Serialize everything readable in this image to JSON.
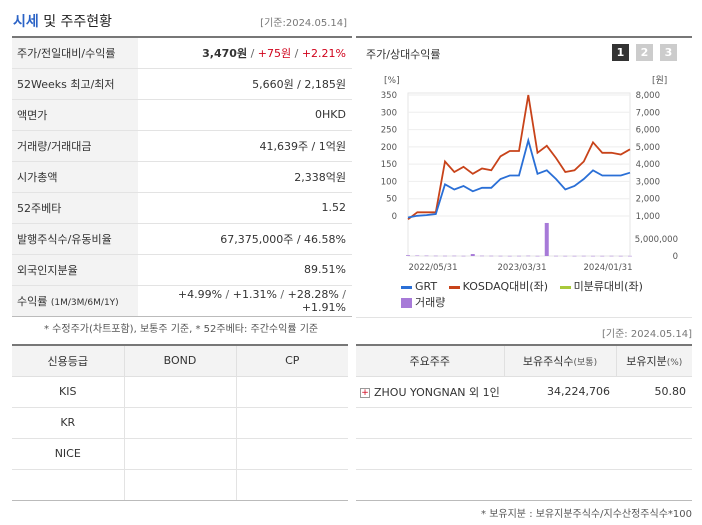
{
  "header": {
    "title_main": "시세",
    "title_rest": " 및 주주현황",
    "date": "[기준:2024.05.14]"
  },
  "quote": {
    "price_label": "주가/전일대비/수익률",
    "price": "3,470원",
    "change": "+75원",
    "change_pct": "+2.21%",
    "w52_label": "52Weeks 최고/최저",
    "w52_value": "5,660원 / 2,185원",
    "par_label": "액면가",
    "par_value": "0HKD",
    "volume_label": "거래량/거래대금",
    "volume_value": "41,639주 / 1억원",
    "mcap_label": "시가총액",
    "mcap_value": "2,338억원",
    "beta_label": "52주베타",
    "beta_value": "1.52",
    "shares_label": "발행주식수/유동비율",
    "shares_value": "67,375,000주 / 46.58%",
    "foreign_label": "외국인지분율",
    "foreign_value": "89.51%",
    "return_label": "수익률",
    "return_period": "(1M/3M/6M/1Y)",
    "return_1m": "+4.99%",
    "return_3m": "+1.31%",
    "return_6m": "+28.28%",
    "return_1y": "+1.91%"
  },
  "notes": {
    "note1": "* 수정주가(차트포함), 보통주 기준, * 52주베타: 주간수익률 기준",
    "date2": "[기준: 2024.05.14]",
    "note2": "* 보유지분 : 보유지분주식수/지수산정주식수*100"
  },
  "chart_panel": {
    "title": "주가/상대수익률",
    "pages": [
      "1",
      "2",
      "3"
    ]
  },
  "chart_data": {
    "type": "line",
    "left_unit": "[%]",
    "right_unit": "[원]",
    "left_ticks": [
      "350",
      "300",
      "250",
      "200",
      "150",
      "100",
      "50",
      "0"
    ],
    "right_ticks": [
      "8,000",
      "7,000",
      "6,000",
      "5,000",
      "4,000",
      "3,000",
      "2,000",
      "1,000"
    ],
    "volume_ticks": [
      "5,000,000",
      "0"
    ],
    "x_labels": [
      "2022/05/31",
      "2023/03/31",
      "2024/01/31"
    ],
    "ylim_left": [
      -10,
      350
    ],
    "ylim_volume": [
      0,
      7000000
    ],
    "series": [
      {
        "name": "GRT",
        "color": "#2a6fd6",
        "values": [
          0,
          5,
          7,
          10,
          95,
          80,
          90,
          75,
          85,
          85,
          110,
          120,
          120,
          220,
          125,
          135,
          110,
          80,
          90,
          110,
          135,
          120,
          120,
          120,
          128
        ]
      },
      {
        "name": "KOSDAQ대비(좌)",
        "color": "#c8431a",
        "values": [
          -5,
          15,
          15,
          15,
          160,
          130,
          145,
          125,
          140,
          135,
          175,
          190,
          190,
          350,
          185,
          205,
          170,
          130,
          135,
          160,
          215,
          185,
          185,
          180,
          195
        ]
      },
      {
        "name": "미분류대비(좌)",
        "color": "#a8c93b",
        "values": []
      },
      {
        "name": "거래량",
        "color": "#a77ad8",
        "values": [
          150000,
          100000,
          80000,
          60000,
          50000,
          60000,
          40000,
          400000,
          60000,
          50000,
          40000,
          30000,
          40000,
          60000,
          30000,
          6800000,
          40000,
          30000,
          30000,
          40000,
          30000,
          30000,
          40000,
          30000,
          30000
        ]
      }
    ]
  },
  "credit": {
    "headers": [
      "신용등급",
      "BOND",
      "CP"
    ],
    "rows": [
      [
        "KIS",
        "",
        ""
      ],
      [
        "KR",
        "",
        ""
      ],
      [
        "NICE",
        "",
        ""
      ],
      [
        "",
        "",
        ""
      ]
    ]
  },
  "holders": {
    "headers": [
      "주요주주",
      "보유주식수",
      "(보통)",
      "보유지분",
      "(%)"
    ],
    "rows": [
      {
        "name": "ZHOU YONGNAN 외 1인",
        "shares": "34,224,706",
        "pct": "50.80"
      }
    ]
  }
}
